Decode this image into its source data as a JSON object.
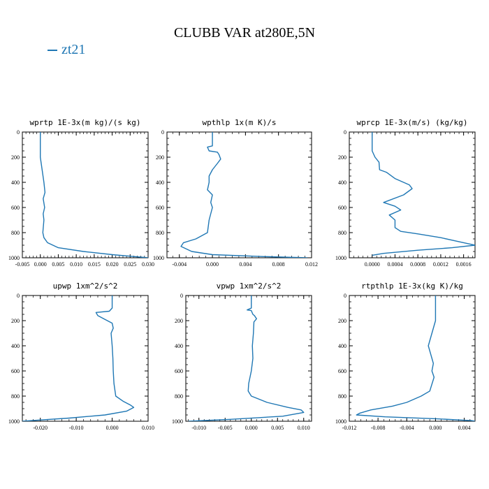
{
  "page": {
    "title": "CLUBB VAR at280E,5N",
    "legend": [
      {
        "label": "zt21",
        "color": "#1f77b4"
      }
    ]
  },
  "chart_data": [
    {
      "type": "line",
      "title": "wprtp  1E-3x(m kg)/(s kg)",
      "xlim": [
        -0.005,
        0.03
      ],
      "ylim": [
        1000,
        0
      ],
      "xticks": [
        -0.005,
        0.0,
        0.005,
        0.01,
        0.015,
        0.02,
        0.025,
        0.03
      ],
      "xtick_labels": [
        "-0.005",
        "0.000",
        "0.005",
        "0.010",
        "0.015",
        "0.020",
        "0.025",
        "0.030"
      ],
      "yticks": [
        0,
        200,
        400,
        600,
        800,
        1000
      ],
      "series": [
        {
          "color": "#1f77b4",
          "points": [
            [
              0.0,
              0
            ],
            [
              0.0,
              100
            ],
            [
              0.0,
              200
            ],
            [
              0.0005,
              300
            ],
            [
              0.001,
              400
            ],
            [
              0.0013,
              480
            ],
            [
              0.0008,
              530
            ],
            [
              0.0012,
              600
            ],
            [
              0.0008,
              650
            ],
            [
              0.001,
              700
            ],
            [
              0.0007,
              800
            ],
            [
              0.001,
              840
            ],
            [
              0.002,
              880
            ],
            [
              0.005,
              920
            ],
            [
              0.012,
              950
            ],
            [
              0.02,
              975
            ],
            [
              0.026,
              990
            ],
            [
              0.03,
              1000
            ]
          ]
        }
      ]
    },
    {
      "type": "line",
      "title": "wpthlp  1x(m K)/s",
      "xlim": [
        -0.0055,
        0.012
      ],
      "ylim": [
        1000,
        0
      ],
      "xticks": [
        -0.004,
        0.0,
        0.004,
        0.008,
        0.012
      ],
      "xtick_labels": [
        "-0.004",
        "0.000",
        "0.004",
        "0.008",
        "0.012"
      ],
      "yticks": [
        0,
        200,
        400,
        600,
        800,
        1000
      ],
      "series": [
        {
          "color": "#1f77b4",
          "points": [
            [
              0.0,
              0
            ],
            [
              0.0,
              110
            ],
            [
              -0.0006,
              120
            ],
            [
              -0.0004,
              150
            ],
            [
              0.0006,
              160
            ],
            [
              0.0008,
              180
            ],
            [
              0.001,
              215
            ],
            [
              0.0006,
              250
            ],
            [
              0.0,
              300
            ],
            [
              -0.0004,
              350
            ],
            [
              -0.0004,
              400
            ],
            [
              -0.0006,
              460
            ],
            [
              0.0,
              500
            ],
            [
              -0.0002,
              560
            ],
            [
              0.0,
              600
            ],
            [
              -0.0002,
              650
            ],
            [
              -0.0004,
              700
            ],
            [
              -0.0006,
              800
            ],
            [
              -0.002,
              850
            ],
            [
              -0.0035,
              880
            ],
            [
              -0.0038,
              910
            ],
            [
              -0.0025,
              950
            ],
            [
              0.0,
              975
            ],
            [
              0.006,
              990
            ],
            [
              0.0115,
              1000
            ]
          ]
        }
      ]
    },
    {
      "type": "line",
      "title": "wprcp  1E-3x(m/s) (kg/kg)",
      "xlim": [
        -0.0004,
        0.0018
      ],
      "ylim": [
        1000,
        0
      ],
      "xticks": [
        0.0,
        0.0004,
        0.0008,
        0.0012,
        0.0016
      ],
      "xtick_labels": [
        "0.0000",
        "0.0004",
        "0.0008",
        "0.0012",
        "0.0016"
      ],
      "yticks": [
        0,
        200,
        400,
        600,
        800,
        1000
      ],
      "series": [
        {
          "color": "#1f77b4",
          "points": [
            [
              0.0,
              0
            ],
            [
              0.0,
              150
            ],
            [
              5e-05,
              200
            ],
            [
              0.00012,
              240
            ],
            [
              0.00013,
              300
            ],
            [
              0.00025,
              320
            ],
            [
              0.0004,
              370
            ],
            [
              0.00065,
              420
            ],
            [
              0.0007,
              450
            ],
            [
              0.00055,
              500
            ],
            [
              0.0002,
              560
            ],
            [
              0.0004,
              590
            ],
            [
              0.0005,
              620
            ],
            [
              0.0003,
              660
            ],
            [
              0.0004,
              700
            ],
            [
              0.0004,
              760
            ],
            [
              0.0005,
              790
            ],
            [
              0.0008,
              810
            ],
            [
              0.0012,
              840
            ],
            [
              0.0016,
              880
            ],
            [
              0.0018,
              900
            ],
            [
              0.0014,
              920
            ],
            [
              0.0008,
              940
            ],
            [
              0.0002,
              965
            ],
            [
              0.0,
              980
            ]
          ]
        }
      ]
    },
    {
      "type": "line",
      "title": "upwp  1xm^2/s^2",
      "xlim": [
        -0.025,
        0.01
      ],
      "ylim": [
        1000,
        0
      ],
      "xticks": [
        -0.02,
        -0.01,
        0.0,
        0.01
      ],
      "xtick_labels": [
        "-0.020",
        "-0.010",
        "0.000",
        "0.010"
      ],
      "yticks": [
        0,
        200,
        400,
        600,
        800,
        1000
      ],
      "series": [
        {
          "color": "#1f77b4",
          "points": [
            [
              0.0,
              0
            ],
            [
              0.0,
              100
            ],
            [
              -0.0008,
              125
            ],
            [
              -0.0045,
              135
            ],
            [
              -0.004,
              160
            ],
            [
              -0.002,
              190
            ],
            [
              0.0,
              220
            ],
            [
              0.0003,
              260
            ],
            [
              -0.0003,
              300
            ],
            [
              0.0,
              400
            ],
            [
              0.0002,
              500
            ],
            [
              0.0003,
              600
            ],
            [
              0.0005,
              700
            ],
            [
              0.001,
              800
            ],
            [
              0.003,
              840
            ],
            [
              0.005,
              870
            ],
            [
              0.006,
              890
            ],
            [
              0.004,
              920
            ],
            [
              -0.002,
              950
            ],
            [
              -0.012,
              975
            ],
            [
              -0.021,
              992
            ],
            [
              -0.025,
              1000
            ]
          ]
        }
      ]
    },
    {
      "type": "line",
      "title": "vpwp  1xm^2/s^2",
      "xlim": [
        -0.0125,
        0.0115
      ],
      "ylim": [
        1000,
        0
      ],
      "xticks": [
        -0.01,
        -0.005,
        0.0,
        0.005,
        0.01
      ],
      "xtick_labels": [
        "-0.010",
        "-0.005",
        "0.000",
        "0.005",
        "0.010"
      ],
      "yticks": [
        0,
        200,
        400,
        600,
        800,
        1000
      ],
      "series": [
        {
          "color": "#1f77b4",
          "points": [
            [
              0.0,
              0
            ],
            [
              0.0,
              100
            ],
            [
              -0.0008,
              115
            ],
            [
              0.0,
              120
            ],
            [
              0.0003,
              150
            ],
            [
              0.0006,
              160
            ],
            [
              0.001,
              185
            ],
            [
              0.0005,
              210
            ],
            [
              0.0004,
              300
            ],
            [
              0.0002,
              400
            ],
            [
              0.0003,
              500
            ],
            [
              0.0,
              600
            ],
            [
              -0.0005,
              700
            ],
            [
              -0.0006,
              760
            ],
            [
              0.0,
              800
            ],
            [
              0.003,
              850
            ],
            [
              0.007,
              890
            ],
            [
              0.0095,
              910
            ],
            [
              0.01,
              930
            ],
            [
              0.006,
              960
            ],
            [
              -0.004,
              985
            ],
            [
              -0.012,
              1000
            ]
          ]
        }
      ]
    },
    {
      "type": "line",
      "title": "rtpthlp  1E-3x(kg K)/kg",
      "xlim": [
        -0.012,
        0.0055
      ],
      "ylim": [
        1000,
        0
      ],
      "xticks": [
        -0.012,
        -0.008,
        -0.004,
        0.0,
        0.004
      ],
      "xtick_labels": [
        "-0.012",
        "-0.008",
        "-0.004",
        "0.000",
        "0.004"
      ],
      "yticks": [
        0,
        200,
        400,
        600,
        800,
        1000
      ],
      "series": [
        {
          "color": "#1f77b4",
          "points": [
            [
              0.0,
              0
            ],
            [
              0.0,
              100
            ],
            [
              0.0,
              200
            ],
            [
              -0.0005,
              300
            ],
            [
              -0.001,
              400
            ],
            [
              -0.0005,
              500
            ],
            [
              -0.0003,
              540
            ],
            [
              -0.0005,
              600
            ],
            [
              -0.0002,
              650
            ],
            [
              -0.0008,
              760
            ],
            [
              -0.002,
              800
            ],
            [
              -0.004,
              850
            ],
            [
              -0.006,
              880
            ],
            [
              -0.009,
              910
            ],
            [
              -0.0105,
              935
            ],
            [
              -0.011,
              950
            ],
            [
              -0.007,
              965
            ],
            [
              0.0,
              980
            ],
            [
              0.005,
              995
            ],
            [
              0.0055,
              1000
            ]
          ]
        }
      ]
    }
  ]
}
